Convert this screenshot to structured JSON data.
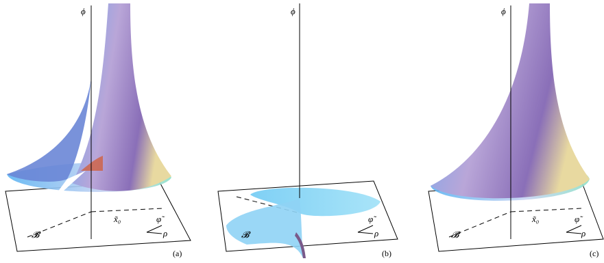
{
  "panels": [
    {
      "axis": "ϕ",
      "boundary": "𝓑",
      "point": "x̃₀",
      "coords": [
        "φ̃",
        "ρ"
      ],
      "label": "(a)"
    },
    {
      "axis": "ϕ",
      "boundary": "𝓑",
      "coords": [
        "φ̃",
        "ρ"
      ],
      "label": "(b)"
    },
    {
      "axis": "ϕ",
      "boundary": "𝓑",
      "point": "x̃₀",
      "coords": [
        "φ̃",
        "ρ"
      ],
      "label": "(c)"
    }
  ]
}
